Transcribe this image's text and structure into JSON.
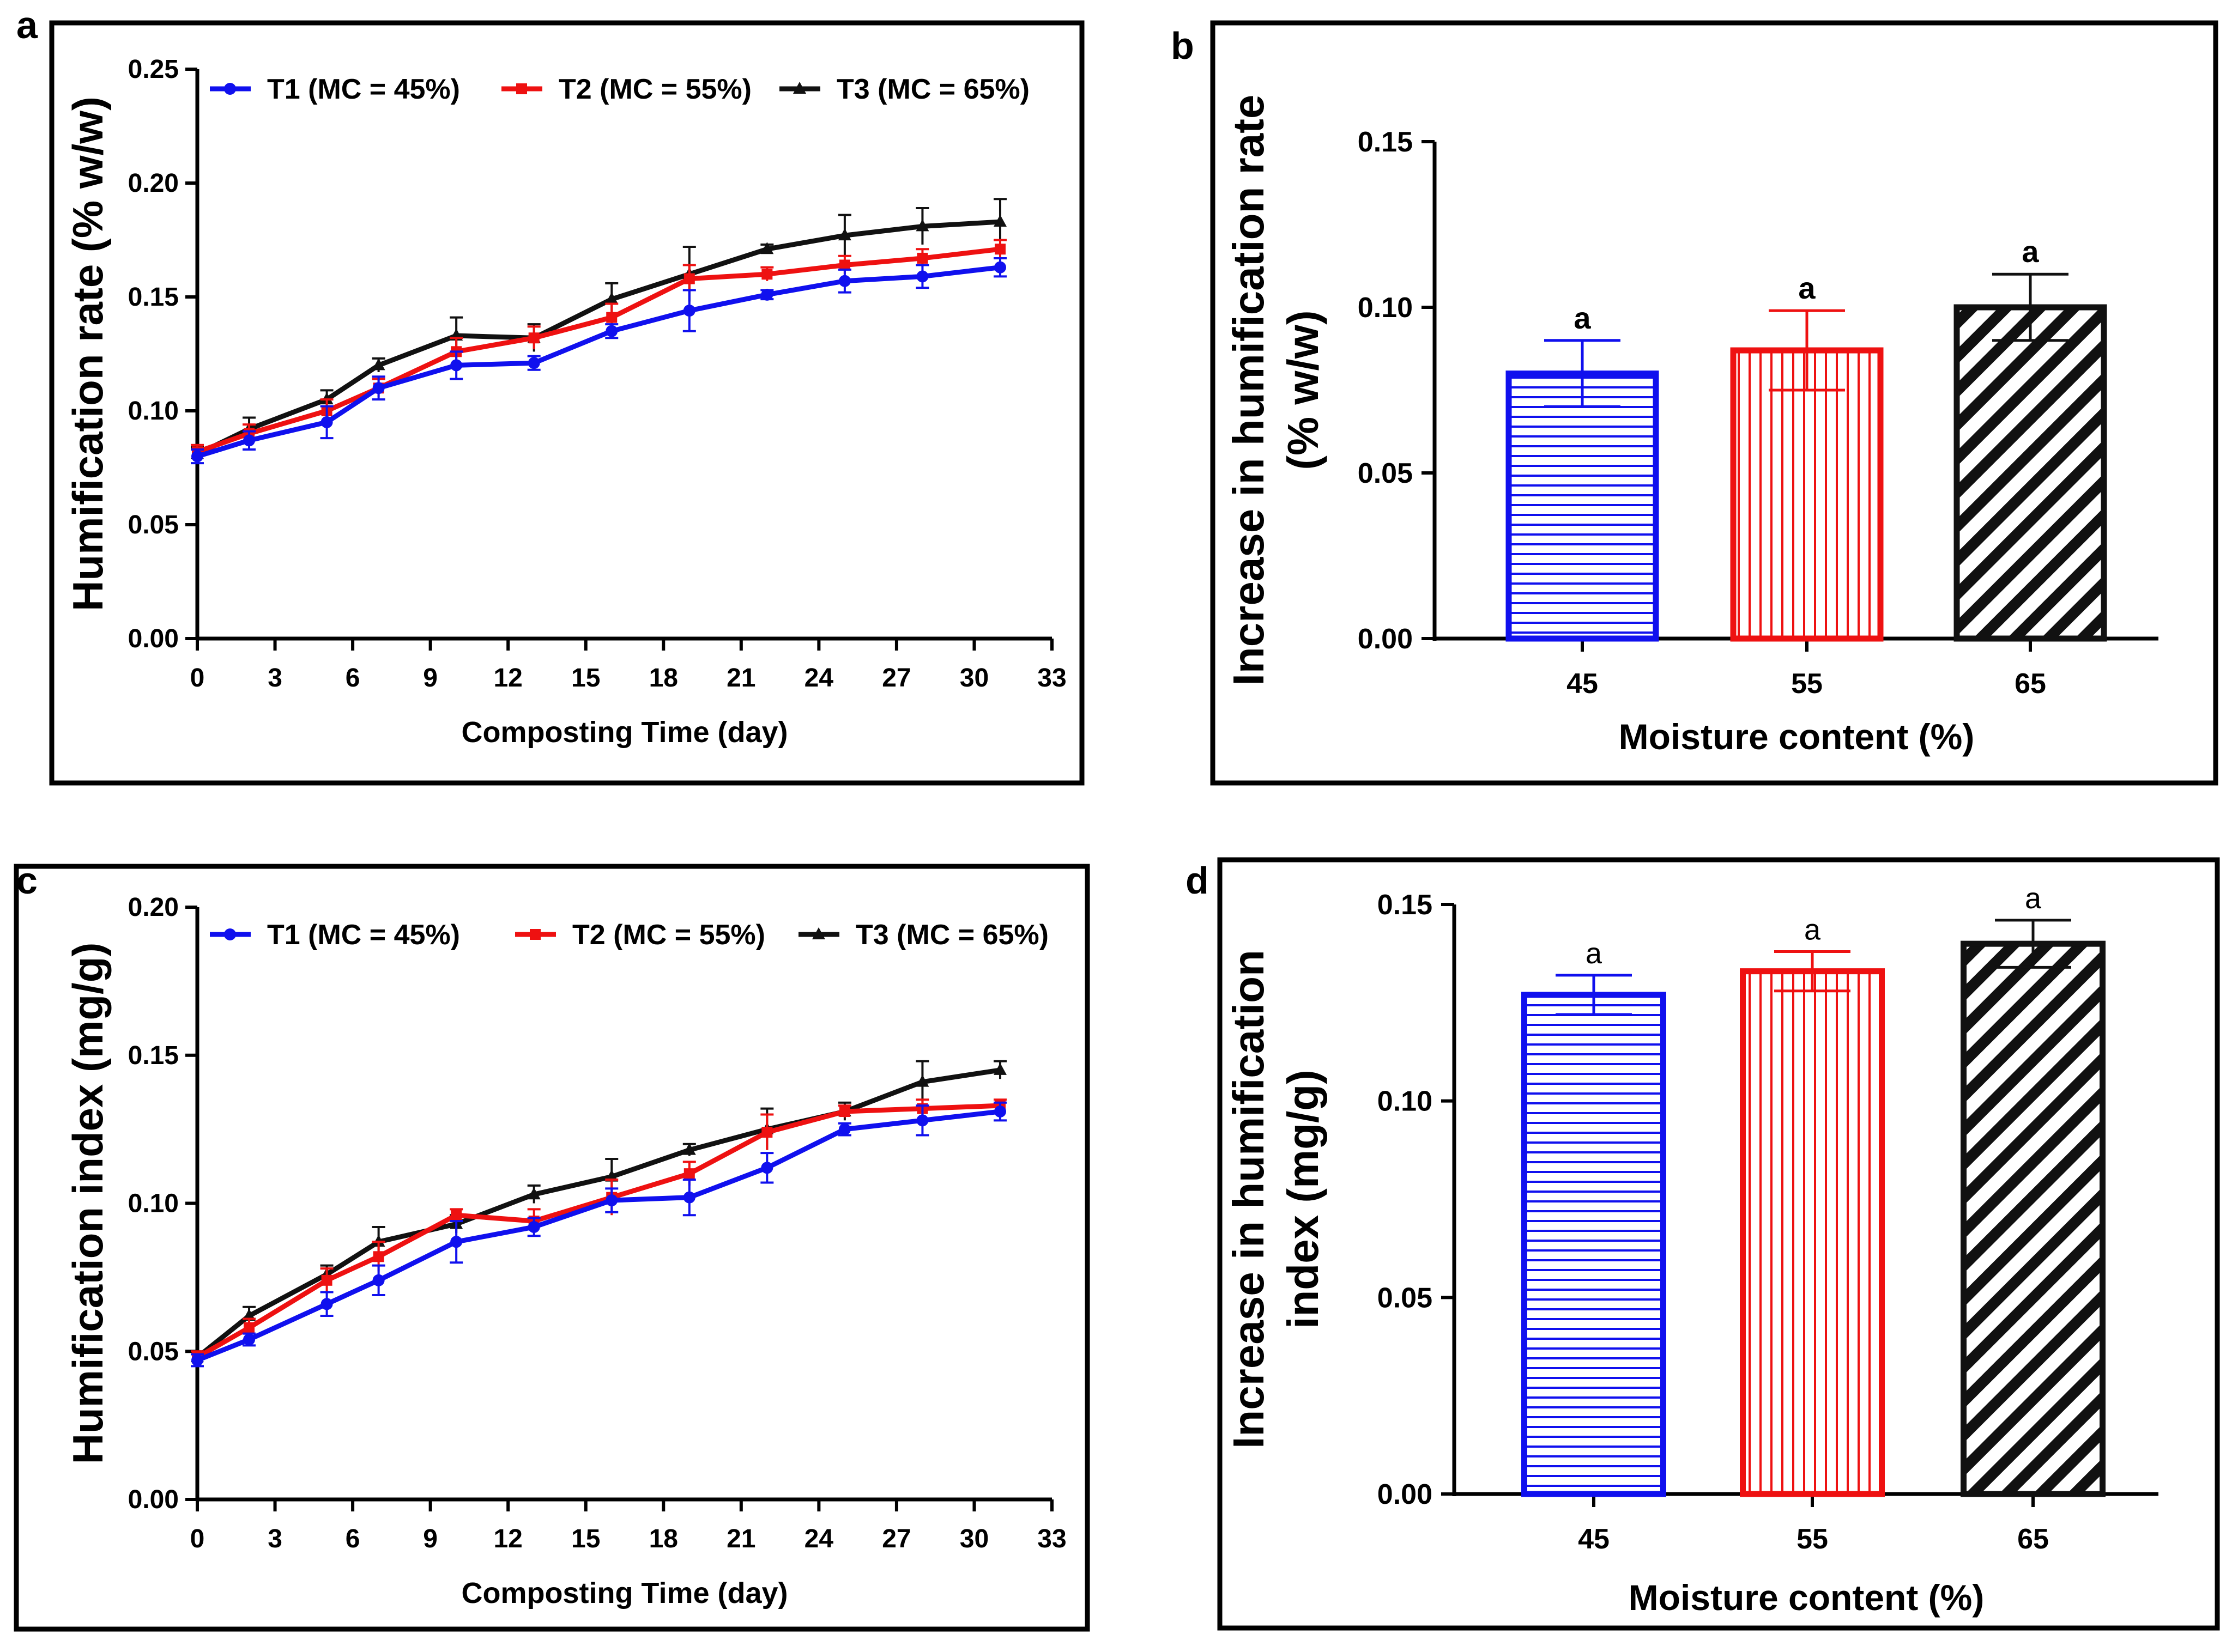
{
  "colors": {
    "T1": "#1010ee",
    "T2": "#ee1111",
    "T3": "#111111"
  },
  "panels": {
    "a": {
      "letter": "a"
    },
    "b": {
      "letter": "b"
    },
    "c": {
      "letter": "c"
    },
    "d": {
      "letter": "d"
    }
  },
  "chart_data": [
    {
      "panel": "a",
      "type": "line",
      "xlabel": "Composting Time (day)",
      "ylabel": "Humification rate (% w/w)",
      "xlim": [
        0,
        33
      ],
      "ylim": [
        0,
        0.25
      ],
      "xticks": [
        "0",
        "3",
        "6",
        "9",
        "12",
        "15",
        "18",
        "21",
        "24",
        "27",
        "30",
        "33"
      ],
      "yticks": [
        "0.00",
        "0.05",
        "0.10",
        "0.15",
        "0.20",
        "0.25"
      ],
      "x": [
        0,
        2,
        5,
        7,
        10,
        13,
        16,
        19,
        22,
        25,
        28,
        31
      ],
      "legend_position": "top",
      "series": [
        {
          "name": "T1 (MC = 45%)",
          "color_key": "T1",
          "marker": "circle",
          "values": [
            0.08,
            0.087,
            0.095,
            0.11,
            0.12,
            0.121,
            0.135,
            0.144,
            0.151,
            0.157,
            0.159,
            0.163
          ],
          "errors": [
            0.003,
            0.004,
            0.007,
            0.005,
            0.006,
            0.003,
            0.003,
            0.009,
            0.002,
            0.005,
            0.005,
            0.004
          ]
        },
        {
          "name": "T2 (MC = 55%)",
          "color_key": "T2",
          "marker": "square",
          "values": [
            0.082,
            0.09,
            0.1,
            0.11,
            0.126,
            0.132,
            0.141,
            0.158,
            0.16,
            0.164,
            0.167,
            0.171
          ],
          "errors": [
            0.003,
            0.004,
            0.005,
            0.004,
            0.006,
            0.005,
            0.006,
            0.006,
            0.003,
            0.004,
            0.004,
            0.004
          ]
        },
        {
          "name": "T3 (MC = 65%)",
          "color_key": "T3",
          "marker": "triangle",
          "values": [
            0.081,
            0.092,
            0.105,
            0.12,
            0.133,
            0.132,
            0.149,
            0.16,
            0.171,
            0.177,
            0.181,
            0.183
          ],
          "errors": [
            0.003,
            0.005,
            0.004,
            0.003,
            0.008,
            0.006,
            0.007,
            0.012,
            0.002,
            0.009,
            0.008,
            0.01
          ]
        }
      ]
    },
    {
      "panel": "b",
      "type": "bar",
      "xlabel": "Moisture content (%)",
      "ylabel_lines": [
        "Increase in humification rate",
        "(% w/w)"
      ],
      "ylim": [
        0,
        0.15
      ],
      "yticks": [
        "0.00",
        "0.05",
        "0.10",
        "0.15"
      ],
      "categories": [
        "45",
        "55",
        "65"
      ],
      "values": [
        0.08,
        0.087,
        0.1
      ],
      "errors": [
        0.01,
        0.012,
        0.01
      ],
      "color_keys": [
        "T1",
        "T2",
        "T3"
      ],
      "patterns": [
        "horizontal",
        "vertical",
        "diagonal"
      ],
      "annotations": [
        "a",
        "a",
        "a"
      ]
    },
    {
      "panel": "c",
      "type": "line",
      "xlabel": "Composting Time (day)",
      "ylabel": "Humification index (mg/g)",
      "xlim": [
        0,
        33
      ],
      "ylim": [
        0,
        0.2
      ],
      "xticks": [
        "0",
        "3",
        "6",
        "9",
        "12",
        "15",
        "18",
        "21",
        "24",
        "27",
        "30",
        "33"
      ],
      "yticks": [
        "0.00",
        "0.05",
        "0.10",
        "0.15",
        "0.20"
      ],
      "x": [
        0,
        2,
        5,
        7,
        10,
        13,
        16,
        19,
        22,
        25,
        28,
        31
      ],
      "legend_position": "top",
      "series": [
        {
          "name": "T1 (MC = 45%)",
          "color_key": "T1",
          "marker": "circle",
          "values": [
            0.047,
            0.054,
            0.066,
            0.074,
            0.087,
            0.092,
            0.101,
            0.102,
            0.112,
            0.125,
            0.128,
            0.131
          ],
          "errors": [
            0.002,
            0.002,
            0.004,
            0.005,
            0.007,
            0.003,
            0.004,
            0.006,
            0.005,
            0.002,
            0.005,
            0.003
          ]
        },
        {
          "name": "T2 (MC = 55%)",
          "color_key": "T2",
          "marker": "square",
          "values": [
            0.048,
            0.058,
            0.074,
            0.082,
            0.096,
            0.094,
            0.102,
            0.11,
            0.124,
            0.131,
            0.132,
            0.133
          ],
          "errors": [
            0.002,
            0.003,
            0.004,
            0.005,
            0.002,
            0.004,
            0.006,
            0.004,
            0.006,
            0.002,
            0.003,
            0.002
          ]
        },
        {
          "name": "T3 (MC = 65%)",
          "color_key": "T3",
          "marker": "triangle",
          "values": [
            0.048,
            0.062,
            0.076,
            0.087,
            0.093,
            0.103,
            0.109,
            0.118,
            0.125,
            0.131,
            0.141,
            0.145
          ],
          "errors": [
            0.002,
            0.003,
            0.003,
            0.005,
            0.003,
            0.003,
            0.006,
            0.002,
            0.007,
            0.003,
            0.007,
            0.003
          ]
        }
      ]
    },
    {
      "panel": "d",
      "type": "bar",
      "xlabel": "Moisture content (%)",
      "ylabel_lines": [
        "Increase in humification",
        "index (mg/g)"
      ],
      "ylim": [
        0,
        0.15
      ],
      "yticks": [
        "0.00",
        "0.05",
        "0.10",
        "0.15"
      ],
      "categories": [
        "45",
        "55",
        "65"
      ],
      "values": [
        0.127,
        0.133,
        0.14
      ],
      "errors": [
        0.005,
        0.005,
        0.006
      ],
      "color_keys": [
        "T1",
        "T2",
        "T3"
      ],
      "patterns": [
        "horizontal",
        "vertical",
        "diagonal"
      ],
      "annotations": [
        "a",
        "a",
        "a"
      ]
    }
  ]
}
